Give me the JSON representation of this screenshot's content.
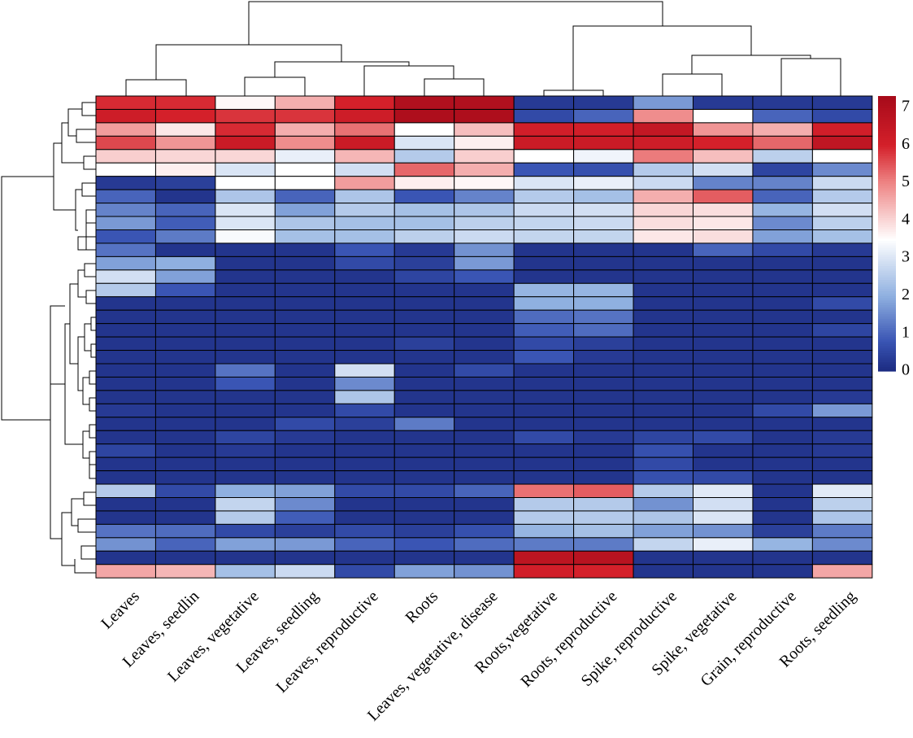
{
  "chart_data": {
    "type": "heatmap",
    "columns": [
      "Leaves",
      "Leaves, seedlin",
      "Leaves, vegetative",
      "Leaves, seedling",
      "Leaves, reproductive",
      "Roots",
      "Leaves, vegetative, disease",
      "Roots,vegetative",
      "Roots, reproductive",
      "Spike, reproductive",
      "Spike, vegetative",
      "Grain, reproductive",
      "Roots, seedling"
    ],
    "values": [
      [
        5.9,
        5.9,
        3.6,
        4.5,
        6.0,
        7.0,
        7.0,
        0.3,
        0.3,
        1.7,
        0.3,
        0.3,
        0.3
      ],
      [
        6.2,
        6.0,
        5.8,
        5.8,
        6.2,
        7.1,
        7.1,
        0.6,
        1.0,
        4.9,
        3.5,
        1.0,
        0.6
      ],
      [
        4.7,
        3.8,
        5.9,
        4.5,
        5.2,
        3.5,
        4.3,
        6.1,
        6.1,
        6.5,
        4.8,
        4.5,
        6.1
      ],
      [
        5.6,
        4.8,
        6.3,
        4.9,
        6.3,
        3.0,
        3.7,
        6.3,
        6.3,
        6.2,
        6.0,
        5.3,
        6.6
      ],
      [
        4.1,
        4.0,
        4.0,
        3.2,
        4.4,
        2.5,
        4.1,
        3.5,
        3.3,
        5.1,
        4.3,
        2.6,
        3.5
      ],
      [
        3.5,
        3.7,
        3.0,
        3.5,
        2.9,
        5.3,
        4.5,
        0.8,
        0.7,
        2.5,
        2.9,
        0.5,
        1.5
      ],
      [
        0.3,
        0.4,
        3.5,
        3.5,
        4.7,
        3.7,
        3.6,
        3.0,
        3.2,
        2.8,
        1.4,
        1.4,
        2.8
      ],
      [
        1.0,
        0.2,
        2.4,
        1.0,
        2.4,
        0.8,
        1.4,
        2.5,
        2.3,
        4.5,
        5.4,
        1.0,
        2.5
      ],
      [
        1.4,
        1.0,
        3.0,
        1.8,
        2.5,
        2.3,
        2.4,
        2.8,
        2.9,
        4.0,
        3.9,
        2.1,
        2.9
      ],
      [
        1.7,
        0.9,
        3.0,
        2.4,
        2.3,
        2.3,
        2.6,
        2.7,
        2.8,
        3.9,
        3.8,
        1.5,
        2.6
      ],
      [
        0.8,
        1.3,
        3.4,
        2.3,
        2.3,
        2.6,
        2.8,
        2.7,
        2.7,
        3.8,
        3.9,
        1.8,
        2.3
      ],
      [
        1.2,
        0.2,
        0.2,
        0.2,
        0.8,
        0.3,
        1.6,
        0.2,
        0.2,
        0.2,
        1.0,
        0.6,
        0.3
      ],
      [
        1.8,
        2.0,
        0.2,
        0.2,
        0.6,
        0.4,
        1.7,
        0.2,
        0.2,
        0.2,
        0.2,
        0.2,
        0.2
      ],
      [
        2.9,
        1.8,
        0.2,
        0.2,
        0.2,
        0.5,
        0.8,
        0.2,
        0.2,
        0.2,
        0.2,
        0.2,
        0.2
      ],
      [
        2.5,
        0.8,
        0.2,
        0.2,
        0.2,
        0.2,
        0.2,
        2.1,
        2.1,
        0.2,
        0.2,
        0.2,
        0.2
      ],
      [
        0.2,
        0.2,
        0.2,
        0.2,
        0.2,
        0.2,
        0.2,
        2.0,
        2.0,
        0.2,
        0.2,
        0.2,
        0.6
      ],
      [
        0.2,
        0.2,
        0.2,
        0.2,
        0.2,
        0.2,
        0.2,
        1.1,
        1.2,
        0.2,
        0.2,
        0.2,
        0.2
      ],
      [
        0.2,
        0.2,
        0.2,
        0.2,
        0.2,
        0.2,
        0.2,
        0.9,
        1.1,
        0.2,
        0.2,
        0.2,
        0.5
      ],
      [
        0.2,
        0.2,
        0.2,
        0.2,
        0.2,
        0.4,
        0.2,
        0.6,
        0.4,
        0.2,
        0.2,
        0.2,
        0.2
      ],
      [
        0.2,
        0.2,
        0.2,
        0.2,
        0.2,
        0.2,
        0.2,
        0.8,
        0.3,
        0.2,
        0.2,
        0.2,
        0.2
      ],
      [
        0.2,
        0.2,
        1.2,
        0.2,
        2.9,
        0.2,
        0.6,
        0.2,
        0.2,
        0.2,
        0.2,
        0.2,
        0.2
      ],
      [
        0.2,
        0.2,
        0.8,
        0.2,
        1.5,
        0.2,
        0.2,
        0.2,
        0.2,
        0.2,
        0.2,
        0.2,
        0.2
      ],
      [
        0.2,
        0.2,
        0.2,
        0.2,
        2.4,
        0.2,
        0.2,
        0.2,
        0.2,
        0.2,
        0.2,
        0.2,
        0.3
      ],
      [
        0.3,
        0.2,
        0.2,
        0.2,
        0.6,
        0.2,
        0.2,
        0.2,
        0.2,
        0.2,
        0.2,
        0.6,
        1.7
      ],
      [
        0.2,
        0.2,
        0.2,
        0.6,
        0.4,
        1.3,
        0.2,
        0.2,
        0.2,
        0.2,
        0.2,
        0.2,
        0.2
      ],
      [
        0.2,
        0.2,
        0.5,
        0.3,
        0.2,
        0.2,
        0.2,
        0.6,
        0.3,
        0.5,
        0.6,
        0.2,
        0.3
      ],
      [
        0.5,
        0.2,
        0.3,
        0.2,
        0.2,
        0.2,
        0.2,
        0.2,
        0.2,
        0.7,
        0.2,
        0.2,
        0.3
      ],
      [
        0.2,
        0.2,
        0.2,
        0.2,
        0.2,
        0.2,
        0.2,
        0.2,
        0.2,
        0.6,
        0.2,
        0.2,
        0.2
      ],
      [
        0.2,
        0.2,
        0.2,
        0.2,
        0.2,
        0.2,
        0.2,
        0.2,
        0.2,
        0.7,
        0.6,
        0.2,
        0.2
      ],
      [
        2.5,
        0.6,
        2.0,
        1.8,
        0.6,
        0.6,
        1.0,
        5.2,
        5.4,
        2.5,
        3.1,
        0.2,
        3.1
      ],
      [
        0.2,
        0.2,
        2.7,
        1.5,
        0.2,
        0.2,
        0.2,
        2.5,
        2.5,
        1.6,
        2.9,
        0.2,
        2.6
      ],
      [
        0.2,
        0.2,
        2.5,
        0.9,
        0.2,
        0.2,
        0.2,
        2.5,
        2.5,
        2.4,
        3.0,
        0.2,
        2.4
      ],
      [
        1.2,
        1.1,
        0.6,
        0.4,
        0.6,
        0.4,
        0.7,
        2.1,
        2.3,
        1.8,
        1.6,
        0.4,
        1.3
      ],
      [
        1.6,
        1.0,
        1.8,
        1.7,
        1.0,
        0.8,
        1.1,
        1.3,
        1.3,
        2.7,
        3.2,
        2.1,
        1.5
      ],
      [
        0.2,
        0.2,
        0.2,
        0.2,
        0.2,
        0.2,
        0.2,
        6.7,
        6.8,
        0.2,
        0.2,
        0.2,
        0.2
      ],
      [
        4.6,
        4.4,
        2.3,
        2.8,
        0.6,
        1.8,
        1.6,
        6.1,
        6.0,
        0.2,
        0.2,
        0.2,
        4.6
      ]
    ],
    "color_scale": {
      "min": 0,
      "max": 7.3,
      "colors": [
        "#1B2A80",
        "#3A55B4",
        "#8FB0E0",
        "#FFFFFF",
        "#EE8585",
        "#D4202A",
        "#A70B1A"
      ],
      "stops": [
        0,
        0.8,
        2.0,
        3.5,
        5.0,
        6.0,
        7.3
      ]
    },
    "colorbar_ticks": [
      "0",
      "1",
      "2",
      "3",
      "4",
      "5",
      "6",
      "7"
    ],
    "colorbar_tick_values": [
      0,
      1,
      2,
      3,
      4,
      5,
      6,
      7
    ],
    "legend": "right",
    "column_dendrogram": true,
    "row_dendrogram": true
  }
}
